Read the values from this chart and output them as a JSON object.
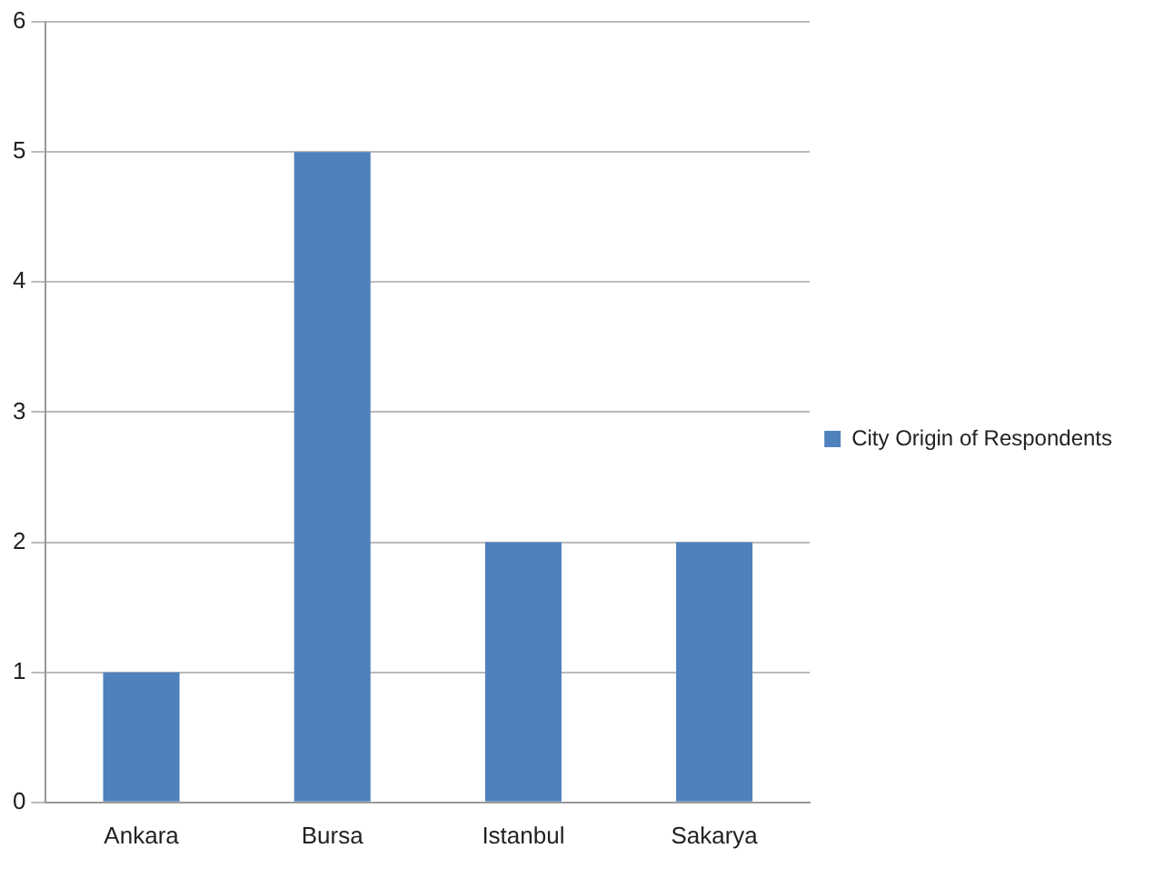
{
  "chart_data": {
    "type": "bar",
    "categories": [
      "Ankara",
      "Bursa",
      "Istanbul",
      "Sakarya"
    ],
    "series": [
      {
        "name": "City Origin of Respondents",
        "color": "#4f81bd",
        "values": [
          1,
          5,
          2,
          2
        ]
      }
    ],
    "ylim": [
      0,
      6
    ],
    "yticks": [
      0,
      1,
      2,
      3,
      4,
      5,
      6
    ],
    "grid": "y",
    "legend": "right"
  }
}
